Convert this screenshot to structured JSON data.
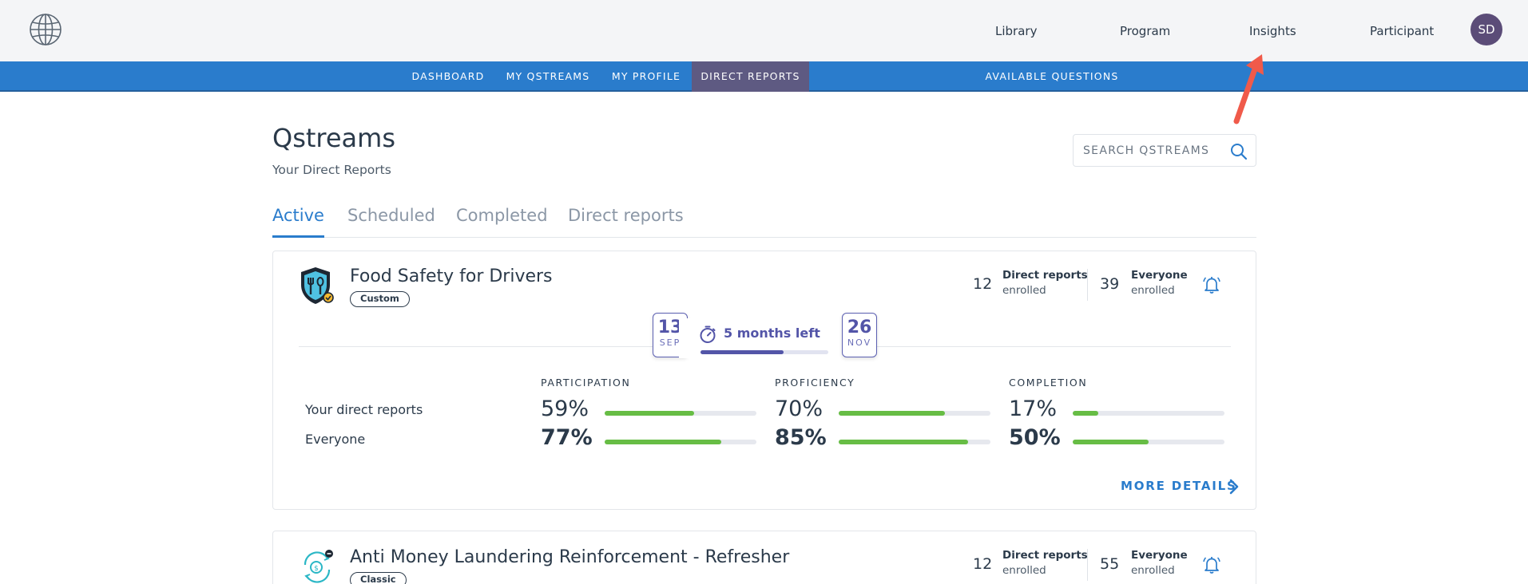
{
  "topnav": {
    "items": [
      "Library",
      "Program",
      "Insights",
      "Participant"
    ],
    "avatar_initials": "SD",
    "logo_icon": "globe-icon"
  },
  "subnav": {
    "items": [
      "DASHBOARD",
      "MY QSTREAMS",
      "MY PROFILE",
      "DIRECT REPORTS",
      "AVAILABLE QUESTIONS"
    ],
    "active": "DIRECT REPORTS"
  },
  "page": {
    "title": "Qstreams",
    "subtitle": "Your Direct Reports"
  },
  "search": {
    "placeholder": "SEARCH QSTREAMS"
  },
  "tabs": {
    "items": [
      "Active",
      "Scheduled",
      "Completed",
      "Direct reports"
    ],
    "active": "Active"
  },
  "cards": [
    {
      "title": "Food Safety for Drivers",
      "badge": "Custom",
      "icon": "food-shield-icon",
      "direct_reports_count": "12",
      "direct_reports_label": "Direct reports",
      "direct_reports_sub": "enrolled",
      "everyone_count": "39",
      "everyone_label": "Everyone",
      "everyone_sub": "enrolled",
      "start_day": "13",
      "start_month": "SEP",
      "end_day": "26",
      "end_month": "NOV",
      "time_left": "5 months left",
      "time_progress": 0.65,
      "metrics": {
        "headers": [
          "PARTICIPATION",
          "PROFICIENCY",
          "COMPLETION"
        ],
        "rows": [
          {
            "label": "Your direct reports",
            "values": [
              "59%",
              "70%",
              "17%"
            ],
            "fractions": [
              0.59,
              0.7,
              0.17
            ]
          },
          {
            "label": "Everyone",
            "values": [
              "77%",
              "85%",
              "50%"
            ],
            "fractions": [
              0.77,
              0.85,
              0.5
            ]
          }
        ]
      },
      "more_details": "MORE DETAILS"
    },
    {
      "title": "Anti Money Laundering Reinforcement - Refresher",
      "badge": "Classic",
      "icon": "money-cycle-icon",
      "direct_reports_count": "12",
      "direct_reports_label": "Direct reports",
      "direct_reports_sub": "enrolled",
      "everyone_count": "55",
      "everyone_label": "Everyone",
      "everyone_sub": "enrolled"
    }
  ],
  "colors": {
    "primary_blue": "#2a7ccc",
    "active_nav": "#5e5a82",
    "accent_purple": "#5355a8",
    "progress_green": "#67bd45",
    "annotation_arrow": "#f05a4a"
  }
}
